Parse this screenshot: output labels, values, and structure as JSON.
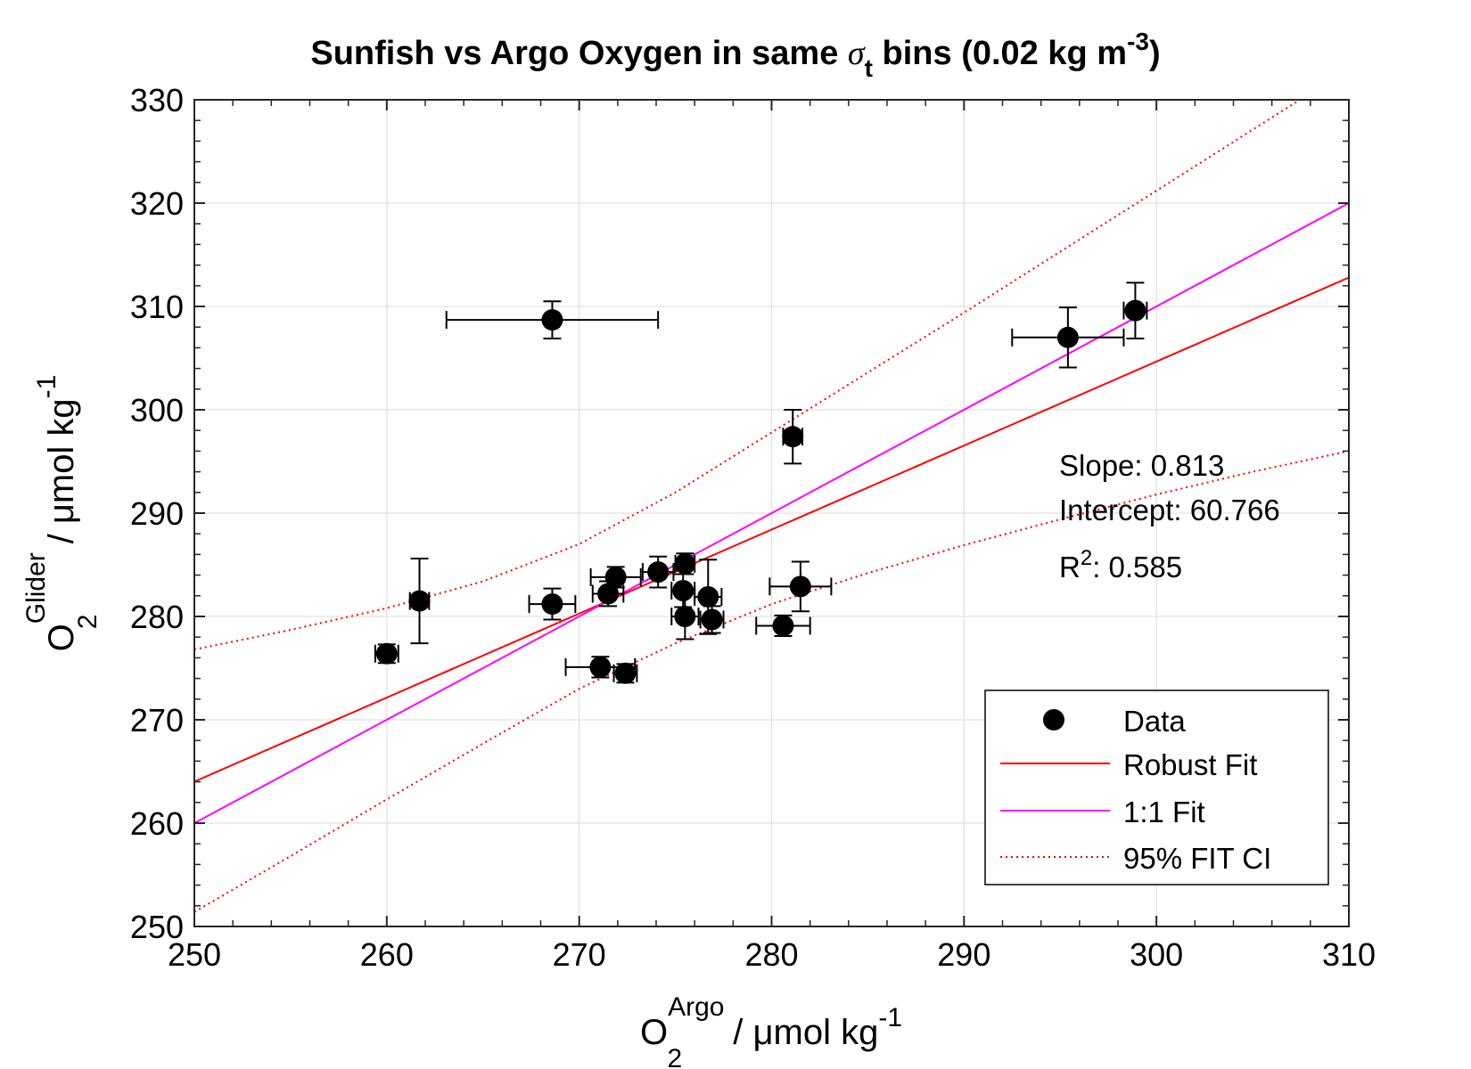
{
  "chart_data": {
    "type": "scatter",
    "title": {
      "part1": "Sunfish vs Argo Oxygen in same ",
      "sigma": "σ",
      "sigma_sub": "t",
      "part2": " bins (0.02 kg m",
      "sup": "-3",
      "part3": ")"
    },
    "xlabel": {
      "base": "O",
      "sub": "2",
      "sup": "Argo",
      "unit": " / μmol kg",
      "unit_sup": "-1"
    },
    "ylabel": {
      "base": "O",
      "sub": "2",
      "sup": "Glider",
      "unit": " / μmol kg",
      "unit_sup": "-1"
    },
    "xlim": [
      250,
      310
    ],
    "ylim": [
      250,
      330
    ],
    "xticks": [
      250,
      260,
      270,
      280,
      290,
      300,
      310
    ],
    "yticks": [
      250,
      260,
      270,
      280,
      290,
      300,
      310,
      320,
      330
    ],
    "xtick_labels": [
      "250",
      "260",
      "270",
      "280",
      "290",
      "300",
      "310"
    ],
    "ytick_labels": [
      "250",
      "260",
      "270",
      "280",
      "290",
      "300",
      "310",
      "320",
      "330"
    ],
    "grid": true,
    "points": [
      {
        "x": 260.0,
        "y": 276.4,
        "xerr": 0.6,
        "yerr": 0.9
      },
      {
        "x": 261.7,
        "y": 281.5,
        "xerr": 0.5,
        "yerr": 4.1
      },
      {
        "x": 268.6,
        "y": 308.7,
        "xerr": 5.5,
        "yerr": 1.8
      },
      {
        "x": 268.6,
        "y": 281.2,
        "xerr": 1.2,
        "yerr": 1.5
      },
      {
        "x": 271.1,
        "y": 275.1,
        "xerr": 1.8,
        "yerr": 1.0
      },
      {
        "x": 271.5,
        "y": 282.2,
        "xerr": 0.8,
        "yerr": 1.2
      },
      {
        "x": 271.9,
        "y": 283.8,
        "xerr": 1.3,
        "yerr": 1.0
      },
      {
        "x": 272.4,
        "y": 274.5,
        "xerr": 0.6,
        "yerr": 0.9
      },
      {
        "x": 274.1,
        "y": 284.3,
        "xerr": 0.8,
        "yerr": 1.5
      },
      {
        "x": 275.4,
        "y": 282.5,
        "xerr": 0.6,
        "yerr": 1.6
      },
      {
        "x": 275.5,
        "y": 285.1,
        "xerr": 0.5,
        "yerr": 1.0
      },
      {
        "x": 275.5,
        "y": 280.0,
        "xerr": 0.7,
        "yerr": 2.2
      },
      {
        "x": 276.7,
        "y": 281.9,
        "xerr": 0.7,
        "yerr": 3.6
      },
      {
        "x": 276.9,
        "y": 279.7,
        "xerr": 0.6,
        "yerr": 1.3
      },
      {
        "x": 280.6,
        "y": 279.1,
        "xerr": 1.4,
        "yerr": 1.0
      },
      {
        "x": 281.1,
        "y": 297.4,
        "xerr": 0.5,
        "yerr": 2.6
      },
      {
        "x": 281.5,
        "y": 282.9,
        "xerr": 1.6,
        "yerr": 2.4
      },
      {
        "x": 295.4,
        "y": 307.0,
        "xerr": 2.9,
        "yerr": 2.9
      },
      {
        "x": 298.9,
        "y": 309.6,
        "xerr": 0.6,
        "yerr": 2.7
      }
    ],
    "robust_fit": {
      "slope": 0.813,
      "intercept": 60.766
    },
    "one_to_one": {
      "slope": 1,
      "intercept": 10
    },
    "ci_upper": [
      [
        250,
        276.8
      ],
      [
        255,
        278.7
      ],
      [
        260,
        280.8
      ],
      [
        265,
        283.4
      ],
      [
        270,
        287.0
      ],
      [
        275,
        292.0
      ],
      [
        280,
        297.8
      ],
      [
        285,
        303.6
      ],
      [
        290,
        309.4
      ],
      [
        295,
        315.3
      ],
      [
        300,
        321.2
      ],
      [
        305,
        327.1
      ],
      [
        310,
        333.0
      ]
    ],
    "ci_lower": [
      [
        250,
        251.4
      ],
      [
        255,
        256.8
      ],
      [
        260,
        262.3
      ],
      [
        265,
        267.7
      ],
      [
        270,
        273.0
      ],
      [
        275,
        277.4
      ],
      [
        280,
        281.2
      ],
      [
        285,
        284.2
      ],
      [
        290,
        286.9
      ],
      [
        295,
        289.4
      ],
      [
        300,
        291.8
      ],
      [
        305,
        294.0
      ],
      [
        310,
        296.0
      ]
    ],
    "annotation": {
      "slope": "Slope: 0.813",
      "intercept": "Intercept: 60.766",
      "r2_base": "R",
      "r2_sup": "2",
      "r2_value": ": 0.585"
    },
    "legend": {
      "position": "bottom-right",
      "entries": [
        "Data",
        "Robust Fit",
        "1:1 Fit",
        "95% FIT CI"
      ]
    },
    "colors": {
      "data": "#000000",
      "robust_fit": "#ff0000",
      "one_to_one": "#ff00ff",
      "ci": "#ff0000",
      "grid": "#e0e0e0"
    }
  }
}
